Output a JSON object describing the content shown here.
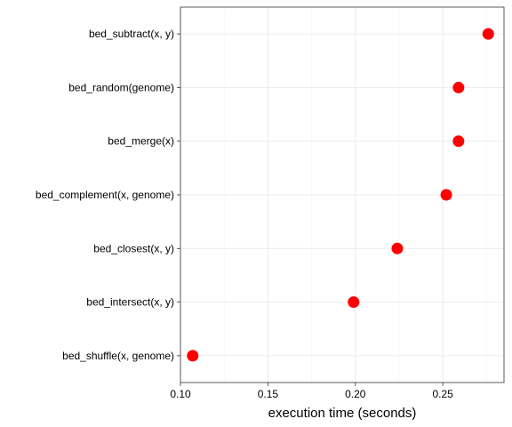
{
  "chart_data": {
    "type": "scatter",
    "title": "",
    "xlabel": "execution time (seconds)",
    "ylabel": "",
    "xlim": [
      0.1,
      0.285
    ],
    "x_ticks": [
      0.1,
      0.15,
      0.2,
      0.25
    ],
    "x_tick_labels": [
      "0.10",
      "0.15",
      "0.20",
      "0.25"
    ],
    "grid": true,
    "point_color": "#ff0000",
    "categories": [
      "bed_subtract(x, y)",
      "bed_random(genome)",
      "bed_merge(x)",
      "bed_complement(x, genome)",
      "bed_closest(x, y)",
      "bed_intersect(x, y)",
      "bed_shuffle(x, genome)"
    ],
    "values": [
      0.276,
      0.259,
      0.259,
      0.252,
      0.224,
      0.199,
      0.107
    ]
  }
}
